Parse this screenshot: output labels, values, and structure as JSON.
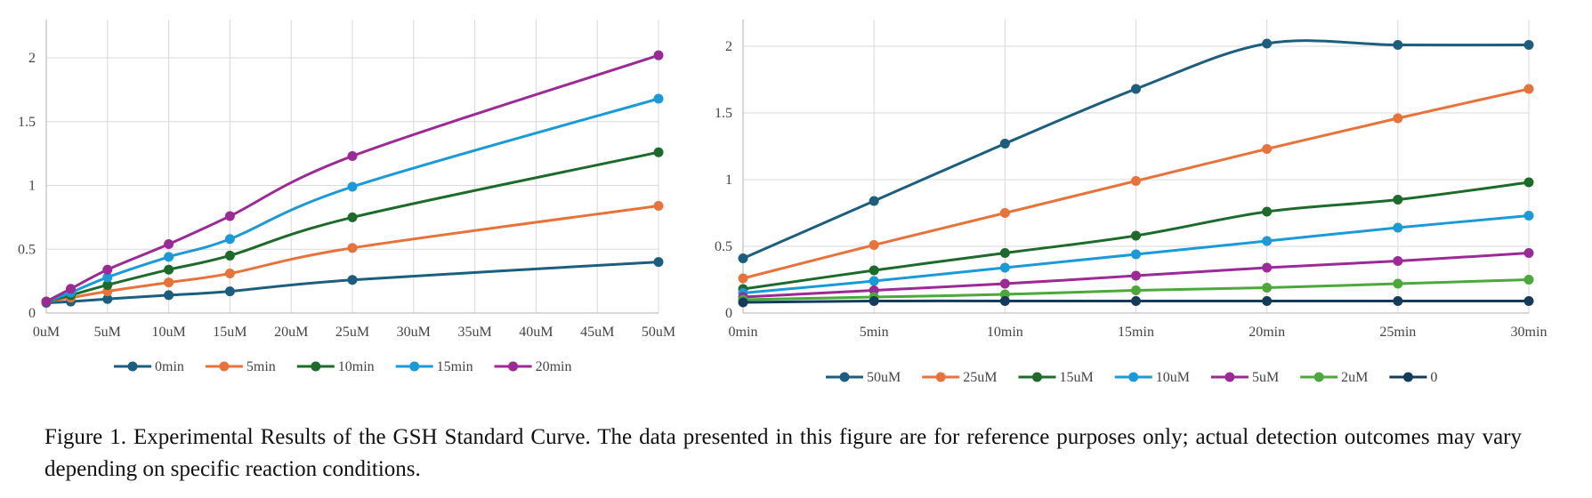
{
  "chart_data": [
    {
      "type": "line",
      "x": [
        "0uM",
        "2uM",
        "5uM",
        "10uM",
        "15uM",
        "25uM",
        "50uM"
      ],
      "x_tick_labels": [
        "0uM",
        "5uM",
        "10uM",
        "15uM",
        "20uM",
        "25uM",
        "30uM",
        "35uM",
        "40uM",
        "45uM",
        "50uM"
      ],
      "x_values": [
        0,
        2,
        5,
        10,
        15,
        25,
        50
      ],
      "xlim": [
        0,
        50
      ],
      "ylim": [
        0,
        2.3
      ],
      "y_ticks": [
        0,
        0.5,
        1,
        1.5,
        2
      ],
      "y_tick_labels": [
        "0",
        "0.5",
        "1",
        "1.5",
        "2"
      ],
      "grid": true,
      "legend": "bottom",
      "title": "",
      "xlabel": "",
      "ylabel": "",
      "series": [
        {
          "name": "0min",
          "color": "#1b5e7e",
          "values": [
            0.08,
            0.09,
            0.11,
            0.14,
            0.17,
            0.26,
            0.4
          ]
        },
        {
          "name": "5min",
          "color": "#e8733a",
          "values": [
            0.09,
            0.12,
            0.17,
            0.24,
            0.31,
            0.51,
            0.84
          ]
        },
        {
          "name": "10min",
          "color": "#1c6b2a",
          "values": [
            0.09,
            0.14,
            0.22,
            0.34,
            0.45,
            0.75,
            1.26
          ]
        },
        {
          "name": "15min",
          "color": "#1a9ad7",
          "values": [
            0.09,
            0.16,
            0.28,
            0.44,
            0.58,
            0.99,
            1.68
          ]
        },
        {
          "name": "20min",
          "color": "#9c2a96",
          "values": [
            0.09,
            0.19,
            0.34,
            0.54,
            0.76,
            1.23,
            2.02
          ]
        }
      ]
    },
    {
      "type": "line",
      "x": [
        "0min",
        "5min",
        "10min",
        "15min",
        "20min",
        "25min",
        "30min"
      ],
      "xlim": [
        0,
        6
      ],
      "ylim": [
        0,
        2.2
      ],
      "y_ticks": [
        0,
        0.5,
        1,
        1.5,
        2
      ],
      "y_tick_labels": [
        "0",
        "0.5",
        "1",
        "1.5",
        "2"
      ],
      "grid": true,
      "legend": "bottom",
      "title": "",
      "xlabel": "",
      "ylabel": "",
      "series": [
        {
          "name": "50uM",
          "color": "#1b5e7e",
          "values": [
            0.41,
            0.84,
            1.27,
            1.68,
            2.02,
            2.01,
            2.01
          ]
        },
        {
          "name": "25uM",
          "color": "#e8733a",
          "values": [
            0.26,
            0.51,
            0.75,
            0.99,
            1.23,
            1.46,
            1.68
          ]
        },
        {
          "name": "15uM",
          "color": "#1c6b2a",
          "values": [
            0.18,
            0.32,
            0.45,
            0.58,
            0.76,
            0.85,
            0.98
          ]
        },
        {
          "name": "10uM",
          "color": "#1a9ad7",
          "values": [
            0.15,
            0.24,
            0.34,
            0.44,
            0.54,
            0.64,
            0.73
          ]
        },
        {
          "name": "5uM",
          "color": "#9c2a96",
          "values": [
            0.12,
            0.17,
            0.22,
            0.28,
            0.34,
            0.39,
            0.45
          ]
        },
        {
          "name": "2uM",
          "color": "#4ba83a",
          "values": [
            0.1,
            0.12,
            0.14,
            0.17,
            0.19,
            0.22,
            0.25
          ]
        },
        {
          "name": "0",
          "color": "#143c5a",
          "values": [
            0.08,
            0.09,
            0.09,
            0.09,
            0.09,
            0.09,
            0.09
          ]
        }
      ]
    }
  ],
  "caption": "Figure 1. Experimental Results of the GSH Standard Curve. The data presented in this figure are for reference purposes only; actual detection outcomes may vary depending on specific reaction conditions."
}
